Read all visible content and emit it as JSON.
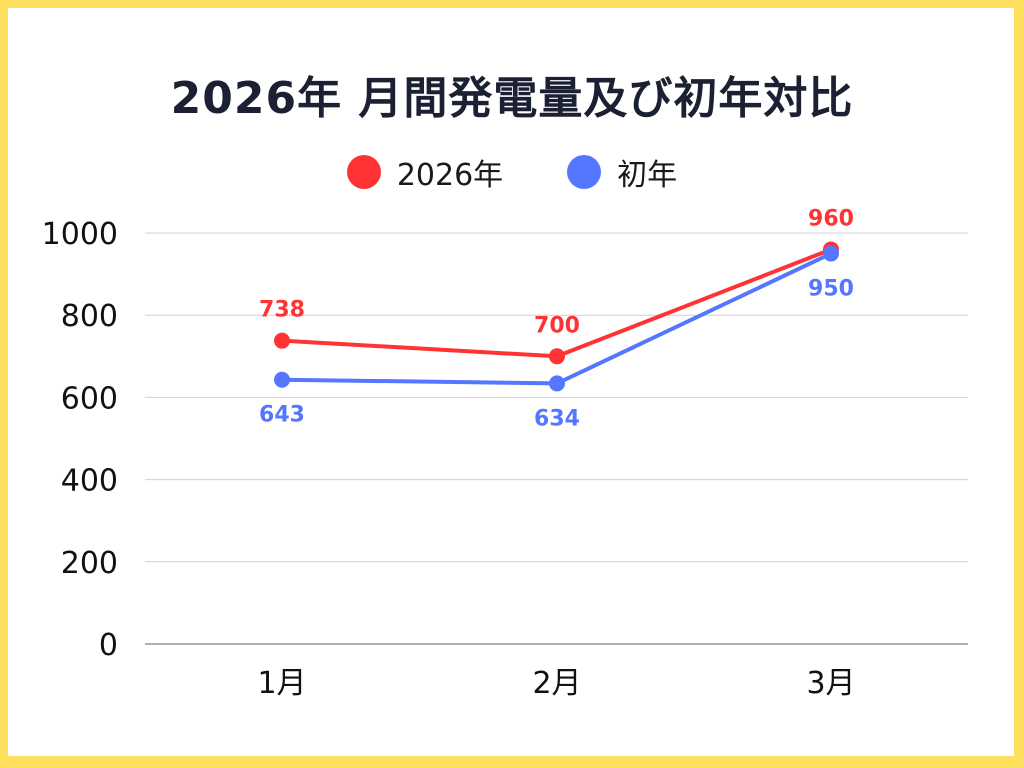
{
  "title": "2026年 月間発電量及び初年対比",
  "legend": [
    {
      "label": "2026年",
      "color": "#FF3333"
    },
    {
      "label": "初年",
      "color": "#5577FF"
    }
  ],
  "colors": {
    "frame": "#FFDF5E",
    "background": "#FFFFFF",
    "title": "#1C2033",
    "grid": "#D0D0D0",
    "axis": "#B0B0B0"
  },
  "chart_data": {
    "type": "line",
    "title": "2026年 月間発電量及び初年対比",
    "categories": [
      "1月",
      "2月",
      "3月"
    ],
    "series": [
      {
        "name": "2026年",
        "color": "#FF3333",
        "values": [
          738,
          700,
          960
        ]
      },
      {
        "name": "初年",
        "color": "#5577FF",
        "values": [
          643,
          634,
          950
        ]
      }
    ],
    "xlabel": "",
    "ylabel": "",
    "ylim": [
      0,
      1000
    ],
    "yticks": [
      0,
      200,
      400,
      600,
      800,
      1000
    ],
    "grid": true,
    "legend_position": "top",
    "data_labels": true
  }
}
